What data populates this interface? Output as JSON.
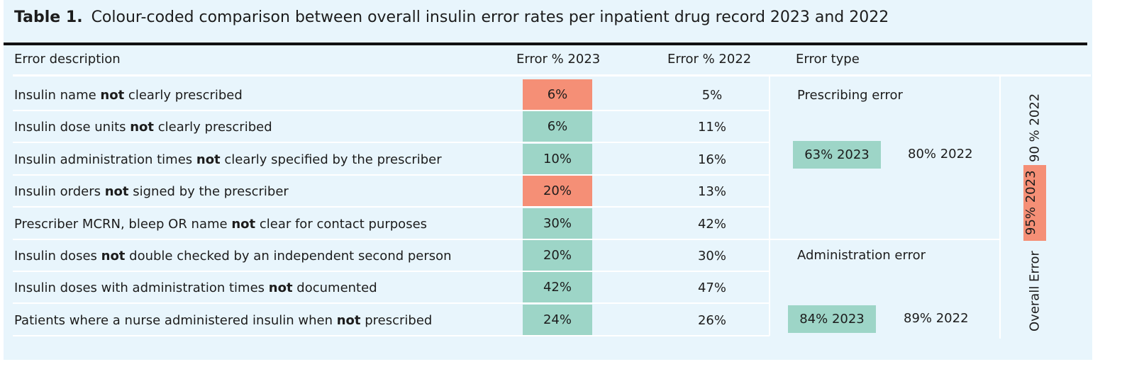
{
  "title": {
    "label": "Table 1.",
    "text": "Colour-coded comparison between overall insulin error rates per inpatient drug record 2023 and 2022"
  },
  "table": {
    "headers": [
      "Error description",
      "Error % 2023",
      "Error % 2022",
      "Error type"
    ],
    "rows": [
      {
        "description": {
          "before": "Insulin name ",
          "emphasis": "not",
          "after": " clearly prescribed"
        },
        "error_2023": "6%",
        "color_2023": "#f58f76",
        "error_2022": "5%"
      },
      {
        "description": {
          "before": "Insulin dose units ",
          "emphasis": "not",
          "after": " clearly prescribed"
        },
        "error_2023": "6%",
        "color_2023": "#9dd5c7",
        "error_2022": "11%"
      },
      {
        "description": {
          "before": "Insulin administration times ",
          "emphasis": "not",
          "after": " clearly specified by the prescriber"
        },
        "error_2023": "10%",
        "color_2023": "#9dd5c7",
        "error_2022": "16%"
      },
      {
        "description": {
          "before": "Insulin orders ",
          "emphasis": "not",
          "after": " signed by the prescriber"
        },
        "error_2023": "20%",
        "color_2023": "#f58f76",
        "error_2022": "13%"
      },
      {
        "description": {
          "before": "Prescriber MCRN, bleep OR name ",
          "emphasis": "not",
          "after": " clear for contact purposes"
        },
        "error_2023": "30%",
        "color_2023": "#9dd5c7",
        "error_2022": "42%"
      },
      {
        "description": {
          "before": "Insulin doses ",
          "emphasis": "not",
          "after": " double checked by an independent second person"
        },
        "error_2023": "20%",
        "color_2023": "#9dd5c7",
        "error_2022": "30%"
      },
      {
        "description": {
          "before": "Insulin doses with administration times ",
          "emphasis": "not",
          "after": " documented"
        },
        "error_2023": "42%",
        "color_2023": "#9dd5c7",
        "error_2022": "47%"
      },
      {
        "description": {
          "before": "Patients where a nurse administered insulin when ",
          "emphasis": "not",
          "after": " prescribed"
        },
        "error_2023": "24%",
        "color_2023": "#9dd5c7",
        "error_2022": "26%"
      }
    ]
  },
  "error_types": [
    {
      "name": "Prescribing error",
      "rate_2023": "63% 2023",
      "rate_2022": "80% 2022",
      "color": "#9dd5c7"
    },
    {
      "name": "Administration error",
      "rate_2023": "84% 2023",
      "rate_2022": "89% 2022",
      "color": "#9dd5c7"
    }
  ],
  "overall": {
    "label": "Overall Error",
    "rate_2023": "95% 2023",
    "rate_2022": "90 % 2022",
    "color": "#f58f76"
  }
}
